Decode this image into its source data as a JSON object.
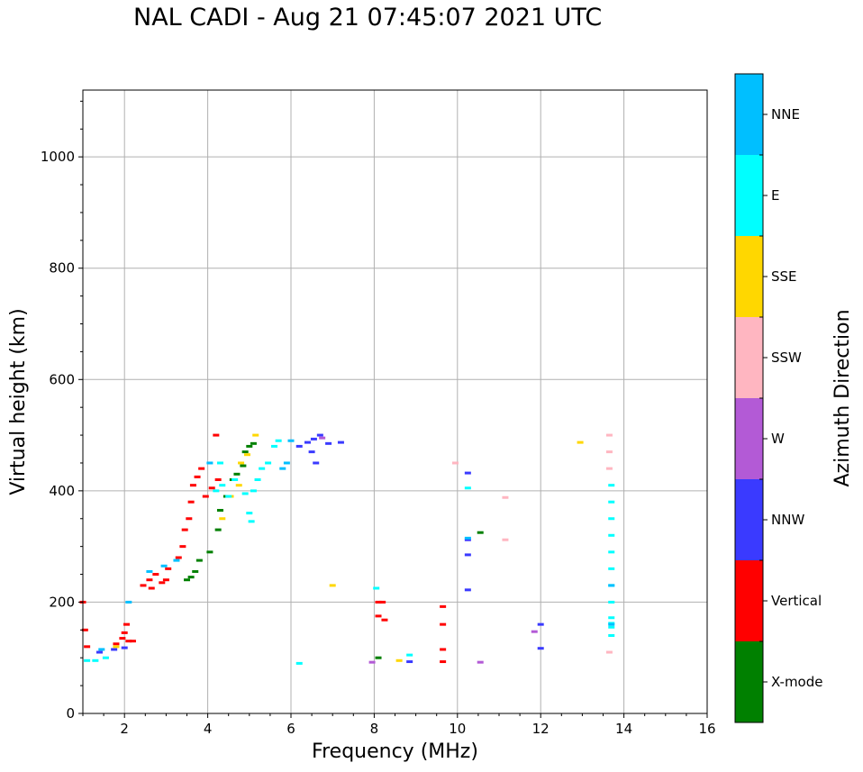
{
  "chart_data": {
    "type": "scatter",
    "title": "NAL CADI - Aug 21 07:45:07 2021 UTC",
    "xlabel": "Frequency (MHz)",
    "ylabel": "Virtual height (km)",
    "xlim": [
      1,
      16
    ],
    "ylim": [
      0,
      1120
    ],
    "x_ticks": [
      2,
      4,
      6,
      8,
      10,
      12,
      14,
      16
    ],
    "y_ticks": [
      0,
      200,
      400,
      600,
      800,
      1000
    ],
    "grid": true,
    "colorbar": {
      "label": "Azimuth Direction",
      "categories": [
        {
          "name": "X-mode",
          "color": "#008000"
        },
        {
          "name": "Vertical",
          "color": "#ff0000"
        },
        {
          "name": "NNW",
          "color": "#3a3aff"
        },
        {
          "name": "W",
          "color": "#b35ad6"
        },
        {
          "name": "SSW",
          "color": "#ffb6c1"
        },
        {
          "name": "SSE",
          "color": "#ffd700"
        },
        {
          "name": "E",
          "color": "#00ffff"
        },
        {
          "name": "NNE",
          "color": "#00bfff"
        }
      ]
    },
    "series": [
      {
        "name": "Vertical",
        "points": [
          [
            1.0,
            200
          ],
          [
            1.05,
            150
          ],
          [
            1.1,
            120
          ],
          [
            1.8,
            125
          ],
          [
            2.0,
            145
          ],
          [
            2.05,
            160
          ],
          [
            2.1,
            130
          ],
          [
            2.45,
            230
          ],
          [
            2.6,
            240
          ],
          [
            2.75,
            250
          ],
          [
            2.9,
            235
          ],
          [
            3.05,
            260
          ],
          [
            3.3,
            280
          ],
          [
            3.4,
            300
          ],
          [
            3.45,
            330
          ],
          [
            3.55,
            350
          ],
          [
            3.6,
            380
          ],
          [
            3.65,
            410
          ],
          [
            3.75,
            425
          ],
          [
            3.85,
            440
          ],
          [
            3.95,
            390
          ],
          [
            4.1,
            405
          ],
          [
            4.2,
            500
          ],
          [
            4.25,
            420
          ],
          [
            8.1,
            200
          ],
          [
            8.2,
            200
          ],
          [
            8.1,
            175
          ],
          [
            8.25,
            168
          ],
          [
            9.65,
            192
          ],
          [
            9.65,
            160
          ],
          [
            9.65,
            115
          ],
          [
            9.65,
            93
          ],
          [
            2.2,
            130
          ],
          [
            3.0,
            240
          ],
          [
            1.95,
            135
          ],
          [
            2.65,
            225
          ]
        ]
      },
      {
        "name": "X-mode",
        "points": [
          [
            3.6,
            245
          ],
          [
            3.7,
            255
          ],
          [
            3.8,
            275
          ],
          [
            4.05,
            290
          ],
          [
            4.25,
            330
          ],
          [
            4.3,
            365
          ],
          [
            4.45,
            390
          ],
          [
            4.6,
            420
          ],
          [
            4.7,
            430
          ],
          [
            4.85,
            445
          ],
          [
            4.9,
            470
          ],
          [
            5.0,
            480
          ],
          [
            5.1,
            485
          ],
          [
            8.1,
            100
          ],
          [
            10.55,
            325
          ],
          [
            3.5,
            240
          ]
        ]
      },
      {
        "name": "NNW",
        "points": [
          [
            1.4,
            110
          ],
          [
            1.75,
            115
          ],
          [
            2.0,
            118
          ],
          [
            6.2,
            480
          ],
          [
            6.4,
            487
          ],
          [
            6.55,
            493
          ],
          [
            6.7,
            500
          ],
          [
            6.5,
            470
          ],
          [
            6.6,
            450
          ],
          [
            7.2,
            487
          ],
          [
            10.25,
            432
          ],
          [
            10.25,
            312
          ],
          [
            10.25,
            285
          ],
          [
            10.25,
            222
          ],
          [
            12.0,
            160
          ],
          [
            12.0,
            117
          ],
          [
            8.85,
            93
          ],
          [
            6.9,
            485
          ]
        ]
      },
      {
        "name": "W",
        "points": [
          [
            7.95,
            92
          ],
          [
            10.55,
            92
          ],
          [
            11.85,
            147
          ],
          [
            6.75,
            495
          ]
        ]
      },
      {
        "name": "SSW",
        "points": [
          [
            9.95,
            450
          ],
          [
            11.15,
            388
          ],
          [
            11.15,
            312
          ],
          [
            13.65,
            500
          ],
          [
            13.65,
            470
          ],
          [
            13.65,
            440
          ],
          [
            13.65,
            110
          ]
        ]
      },
      {
        "name": "SSE",
        "points": [
          [
            4.35,
            350
          ],
          [
            4.55,
            390
          ],
          [
            4.75,
            410
          ],
          [
            4.8,
            450
          ],
          [
            4.95,
            465
          ],
          [
            5.15,
            500
          ],
          [
            7.0,
            230
          ],
          [
            8.6,
            95
          ],
          [
            12.95,
            487
          ],
          [
            1.8,
            120
          ]
        ]
      },
      {
        "name": "E",
        "points": [
          [
            1.1,
            95
          ],
          [
            1.3,
            95
          ],
          [
            1.55,
            100
          ],
          [
            4.2,
            400
          ],
          [
            4.35,
            410
          ],
          [
            4.5,
            390
          ],
          [
            4.65,
            420
          ],
          [
            4.9,
            395
          ],
          [
            5.1,
            400
          ],
          [
            5.2,
            420
          ],
          [
            5.3,
            440
          ],
          [
            5.45,
            450
          ],
          [
            5.6,
            480
          ],
          [
            5.7,
            490
          ],
          [
            5.0,
            360
          ],
          [
            5.05,
            345
          ],
          [
            4.3,
            450
          ],
          [
            8.05,
            225
          ],
          [
            8.85,
            105
          ],
          [
            10.25,
            405
          ],
          [
            13.7,
            410
          ],
          [
            13.7,
            380
          ],
          [
            13.7,
            350
          ],
          [
            13.7,
            320
          ],
          [
            13.7,
            290
          ],
          [
            13.7,
            260
          ],
          [
            13.7,
            230
          ],
          [
            13.7,
            200
          ],
          [
            13.7,
            172
          ],
          [
            13.7,
            162
          ],
          [
            13.7,
            155
          ],
          [
            13.7,
            140
          ],
          [
            6.2,
            90
          ]
        ]
      },
      {
        "name": "NNE",
        "points": [
          [
            1.45,
            115
          ],
          [
            2.1,
            200
          ],
          [
            2.6,
            255
          ],
          [
            2.95,
            265
          ],
          [
            3.25,
            275
          ],
          [
            4.05,
            450
          ],
          [
            5.8,
            440
          ],
          [
            5.9,
            450
          ],
          [
            6.0,
            490
          ],
          [
            10.25,
            315
          ],
          [
            13.7,
            230
          ],
          [
            13.7,
            160
          ]
        ]
      }
    ]
  }
}
